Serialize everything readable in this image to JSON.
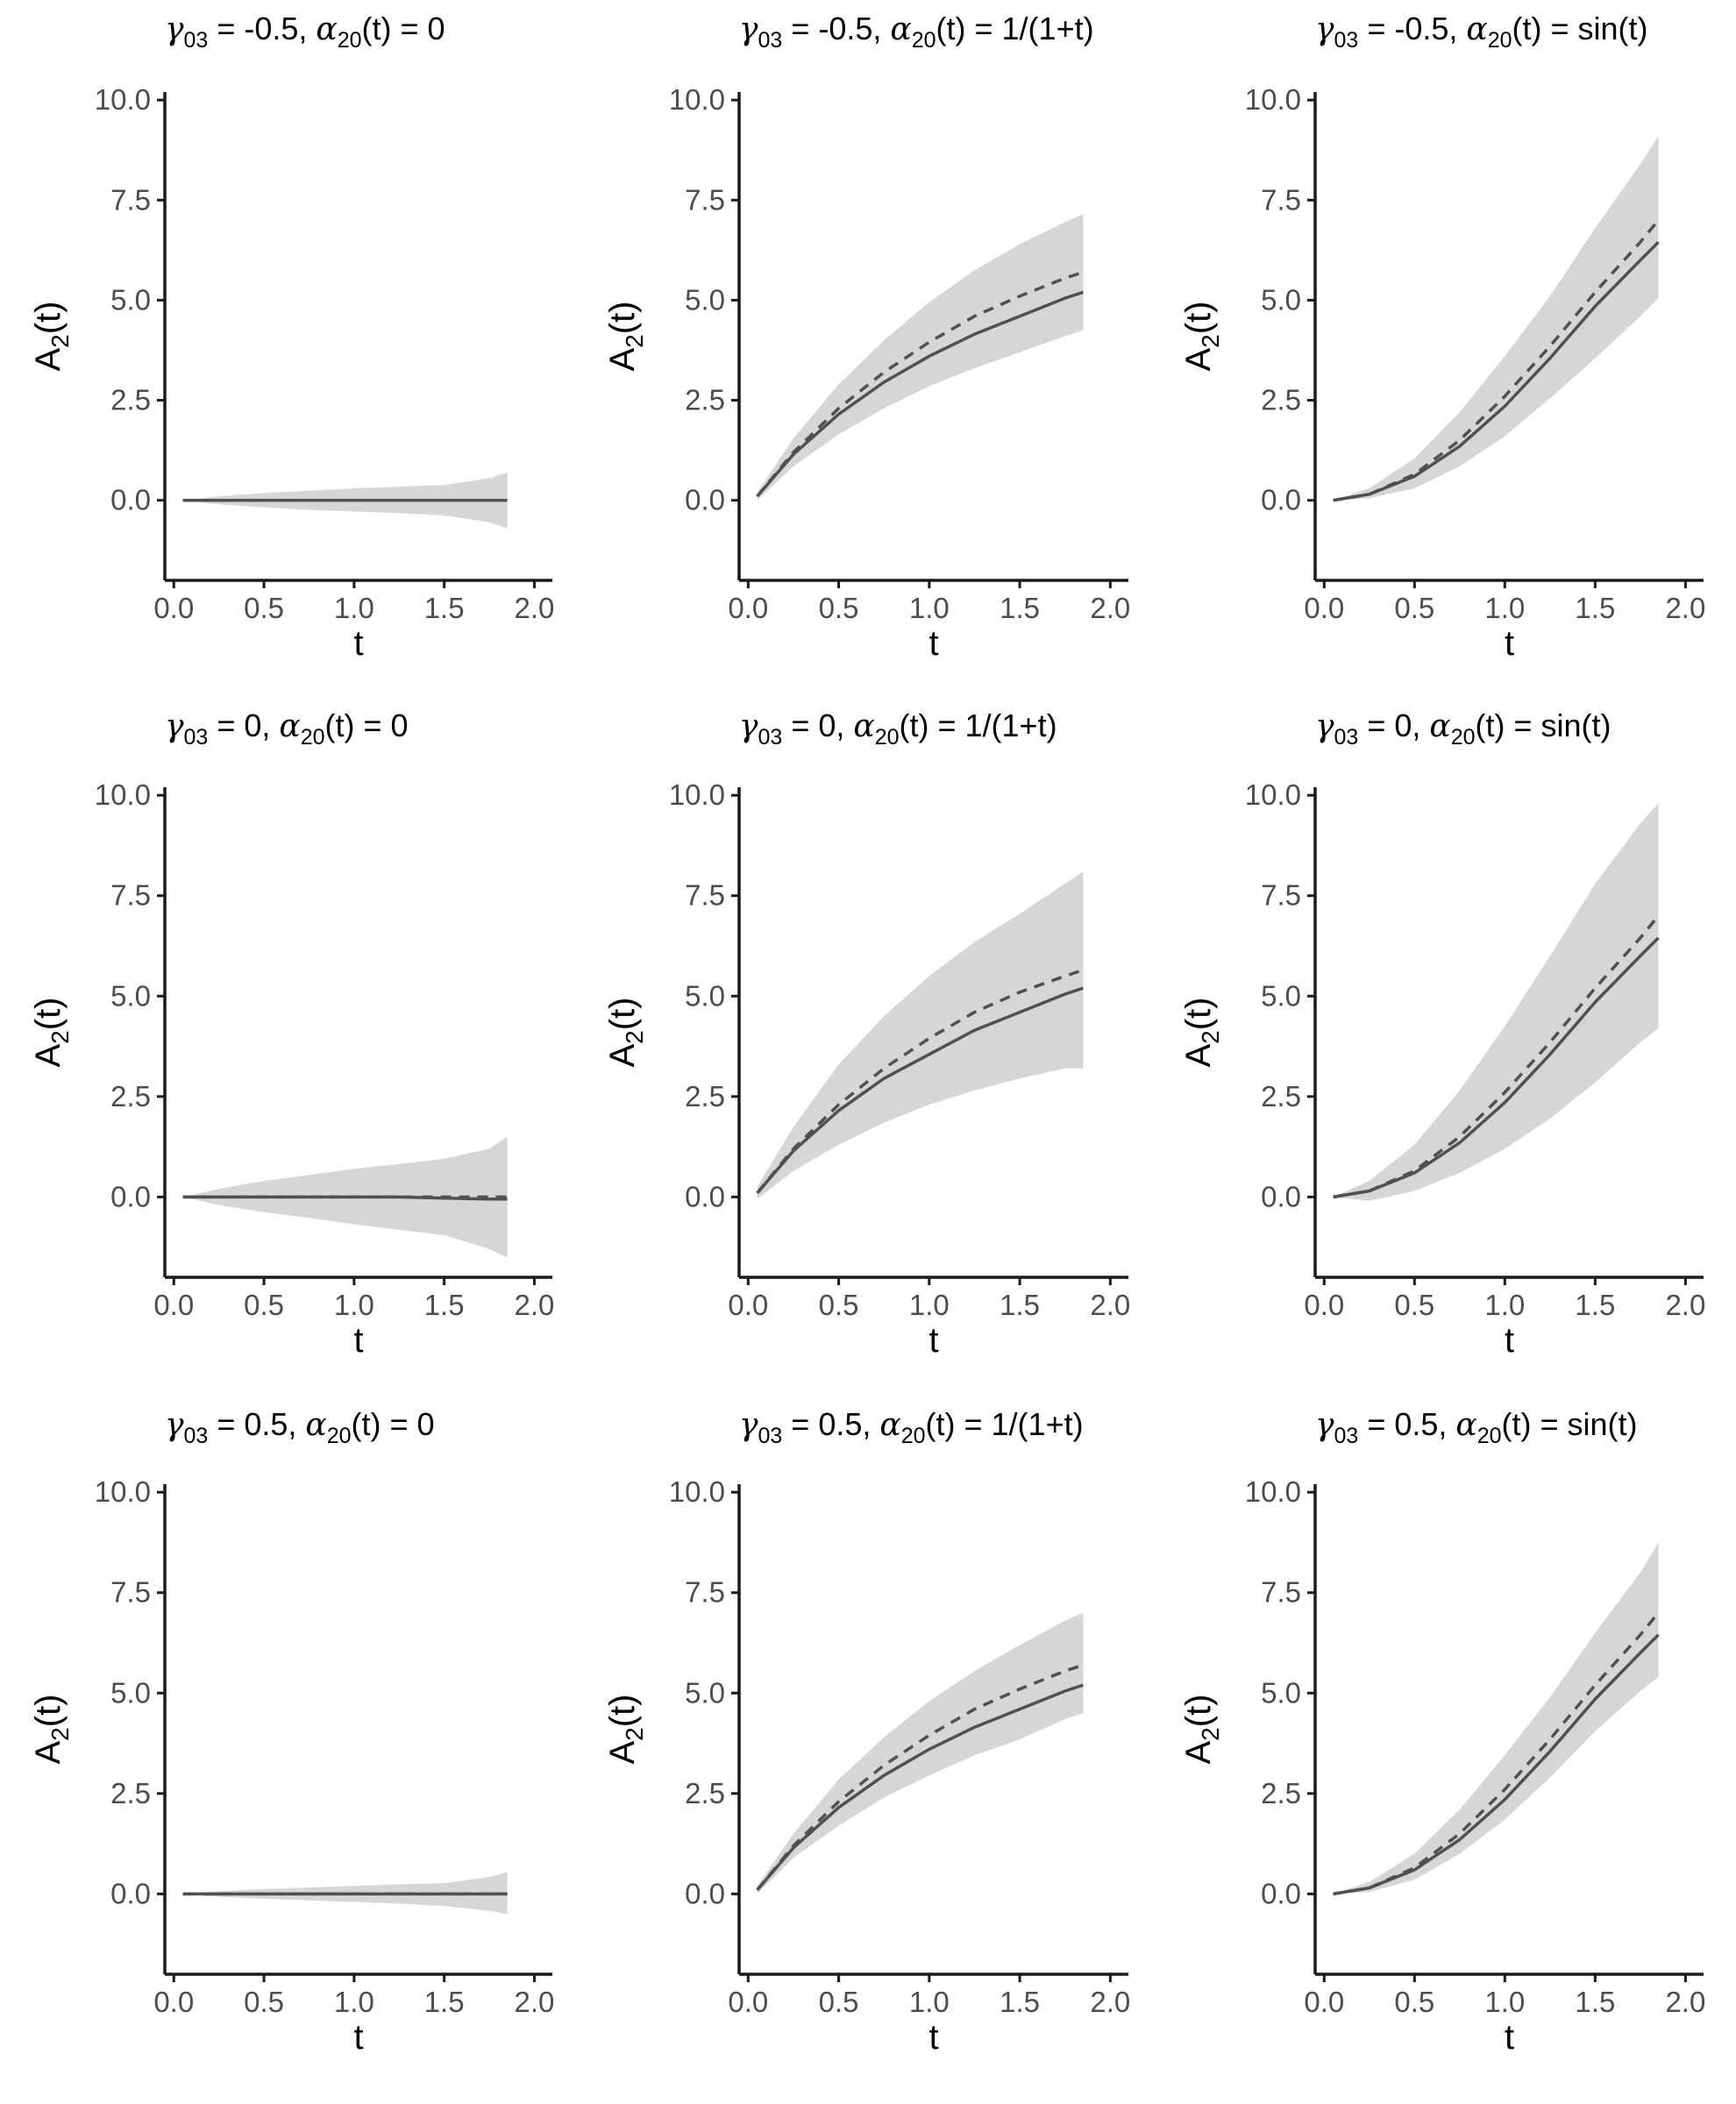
{
  "chart_data": [
    {
      "type": "area",
      "title": {
        "gamma": "-0.5",
        "alpha": "0"
      },
      "xlabel": "t",
      "ylabel": "A2(t)",
      "xlim": [
        -0.05,
        2.1
      ],
      "ylim": [
        -2.0,
        10.2
      ],
      "xticks": [
        "0.0",
        "0.5",
        "1.0",
        "1.5",
        "2.0"
      ],
      "yticks": [
        "0.0",
        "2.5",
        "5.0",
        "7.5",
        "10.0"
      ],
      "grid": false,
      "x": [
        0.05,
        0.25,
        0.5,
        0.75,
        1.0,
        1.25,
        1.5,
        1.75,
        1.85
      ],
      "series": [
        {
          "role": "truth",
          "values": [
            0,
            0,
            0,
            0,
            0,
            0,
            0,
            0,
            0
          ]
        },
        {
          "role": "estimate",
          "values": [
            0,
            0,
            0,
            0,
            0,
            0,
            0,
            0,
            0
          ]
        },
        {
          "role": "upper",
          "values": [
            0,
            0.1,
            0.18,
            0.24,
            0.3,
            0.34,
            0.38,
            0.55,
            0.7
          ]
        },
        {
          "role": "lower",
          "values": [
            0,
            -0.1,
            -0.18,
            -0.24,
            -0.28,
            -0.32,
            -0.38,
            -0.55,
            -0.7
          ]
        }
      ]
    },
    {
      "type": "area",
      "title": {
        "gamma": "-0.5",
        "alpha": "1/(1+t)"
      },
      "xlabel": "t",
      "ylabel": "A2(t)",
      "xlim": [
        -0.05,
        2.1
      ],
      "ylim": [
        -2.0,
        10.2
      ],
      "xticks": [
        "0.0",
        "0.5",
        "1.0",
        "1.5",
        "2.0"
      ],
      "yticks": [
        "0.0",
        "2.5",
        "5.0",
        "7.5",
        "10.0"
      ],
      "grid": false,
      "x": [
        0.05,
        0.25,
        0.5,
        0.75,
        1.0,
        1.25,
        1.5,
        1.75,
        1.85
      ],
      "series": [
        {
          "role": "truth",
          "values": [
            0.1,
            1.2,
            2.3,
            3.2,
            3.95,
            4.6,
            5.1,
            5.55,
            5.7
          ]
        },
        {
          "role": "estimate",
          "values": [
            0.1,
            1.15,
            2.15,
            2.95,
            3.6,
            4.15,
            4.6,
            5.05,
            5.2
          ]
        },
        {
          "role": "upper",
          "values": [
            0.2,
            1.55,
            2.9,
            4.0,
            4.95,
            5.75,
            6.4,
            6.95,
            7.15
          ]
        },
        {
          "role": "lower",
          "values": [
            0.0,
            0.85,
            1.65,
            2.3,
            2.85,
            3.3,
            3.7,
            4.1,
            4.25
          ]
        }
      ]
    },
    {
      "type": "area",
      "title": {
        "gamma": "-0.5",
        "alpha": "sin(t)"
      },
      "xlabel": "t",
      "ylabel": "A2(t)",
      "xlim": [
        -0.05,
        2.1
      ],
      "ylim": [
        -2.0,
        10.2
      ],
      "xticks": [
        "0.0",
        "0.5",
        "1.0",
        "1.5",
        "2.0"
      ],
      "yticks": [
        "0.0",
        "2.5",
        "5.0",
        "7.5",
        "10.0"
      ],
      "grid": false,
      "x": [
        0.05,
        0.25,
        0.5,
        0.75,
        1.0,
        1.25,
        1.5,
        1.75,
        1.85
      ],
      "series": [
        {
          "role": "truth",
          "values": [
            0.0,
            0.15,
            0.65,
            1.5,
            2.6,
            3.85,
            5.2,
            6.45,
            7.0
          ]
        },
        {
          "role": "estimate",
          "values": [
            0.0,
            0.15,
            0.6,
            1.35,
            2.35,
            3.55,
            4.85,
            6.0,
            6.45
          ]
        },
        {
          "role": "upper",
          "values": [
            0.0,
            0.3,
            1.05,
            2.2,
            3.6,
            5.1,
            6.8,
            8.4,
            9.1
          ]
        },
        {
          "role": "lower",
          "values": [
            0.0,
            0.05,
            0.3,
            0.85,
            1.6,
            2.55,
            3.55,
            4.6,
            5.05
          ]
        }
      ]
    },
    {
      "type": "area",
      "title": {
        "gamma": "0",
        "alpha": "0"
      },
      "xlabel": "t",
      "ylabel": "A2(t)",
      "xlim": [
        -0.05,
        2.1
      ],
      "ylim": [
        -2.0,
        10.2
      ],
      "xticks": [
        "0.0",
        "0.5",
        "1.0",
        "1.5",
        "2.0"
      ],
      "yticks": [
        "0.0",
        "2.5",
        "5.0",
        "7.5",
        "10.0"
      ],
      "grid": false,
      "x": [
        0.05,
        0.25,
        0.5,
        0.75,
        1.0,
        1.25,
        1.5,
        1.75,
        1.85
      ],
      "series": [
        {
          "role": "truth",
          "values": [
            0,
            0,
            0,
            0,
            0,
            0,
            0,
            0,
            0
          ]
        },
        {
          "role": "estimate",
          "values": [
            0,
            0,
            0,
            0,
            0,
            0,
            -0.03,
            -0.05,
            -0.05
          ]
        },
        {
          "role": "upper",
          "values": [
            0,
            0.2,
            0.4,
            0.55,
            0.7,
            0.82,
            0.95,
            1.2,
            1.5
          ]
        },
        {
          "role": "lower",
          "values": [
            0,
            -0.2,
            -0.38,
            -0.52,
            -0.68,
            -0.82,
            -0.95,
            -1.3,
            -1.5
          ]
        }
      ]
    },
    {
      "type": "area",
      "title": {
        "gamma": "0",
        "alpha": "1/(1+t)"
      },
      "xlabel": "t",
      "ylabel": "A2(t)",
      "xlim": [
        -0.05,
        2.1
      ],
      "ylim": [
        -2.0,
        10.2
      ],
      "xticks": [
        "0.0",
        "0.5",
        "1.0",
        "1.5",
        "2.0"
      ],
      "yticks": [
        "0.0",
        "2.5",
        "5.0",
        "7.5",
        "10.0"
      ],
      "grid": false,
      "x": [
        0.05,
        0.25,
        0.5,
        0.75,
        1.0,
        1.25,
        1.5,
        1.75,
        1.85
      ],
      "series": [
        {
          "role": "truth",
          "values": [
            0.1,
            1.2,
            2.3,
            3.2,
            3.95,
            4.6,
            5.1,
            5.5,
            5.65
          ]
        },
        {
          "role": "estimate",
          "values": [
            0.1,
            1.15,
            2.15,
            2.95,
            3.55,
            4.15,
            4.6,
            5.05,
            5.2
          ]
        },
        {
          "role": "upper",
          "values": [
            0.25,
            1.75,
            3.3,
            4.5,
            5.5,
            6.35,
            7.05,
            7.8,
            8.1
          ]
        },
        {
          "role": "lower",
          "values": [
            -0.05,
            0.65,
            1.3,
            1.85,
            2.3,
            2.65,
            2.95,
            3.2,
            3.2
          ]
        }
      ]
    },
    {
      "type": "area",
      "title": {
        "gamma": "0",
        "alpha": "sin(t)"
      },
      "xlabel": "t",
      "ylabel": "A2(t)",
      "xlim": [
        -0.05,
        2.1
      ],
      "ylim": [
        -2.0,
        10.2
      ],
      "xticks": [
        "0.0",
        "0.5",
        "1.0",
        "1.5",
        "2.0"
      ],
      "yticks": [
        "0.0",
        "2.5",
        "5.0",
        "7.5",
        "10.0"
      ],
      "grid": false,
      "x": [
        0.05,
        0.25,
        0.5,
        0.75,
        1.0,
        1.25,
        1.5,
        1.75,
        1.85
      ],
      "series": [
        {
          "role": "truth",
          "values": [
            0.0,
            0.15,
            0.65,
            1.5,
            2.6,
            3.85,
            5.2,
            6.45,
            7.0
          ]
        },
        {
          "role": "estimate",
          "values": [
            0.0,
            0.15,
            0.6,
            1.35,
            2.35,
            3.55,
            4.85,
            6.0,
            6.45
          ]
        },
        {
          "role": "upper",
          "values": [
            0.0,
            0.4,
            1.3,
            2.65,
            4.25,
            6.0,
            7.8,
            9.3,
            9.8
          ]
        },
        {
          "role": "lower",
          "values": [
            0.0,
            -0.1,
            0.15,
            0.6,
            1.2,
            1.95,
            2.85,
            3.85,
            4.2
          ]
        }
      ]
    },
    {
      "type": "area",
      "title": {
        "gamma": "0.5",
        "alpha": "0"
      },
      "xlabel": "t",
      "ylabel": "A2(t)",
      "xlim": [
        -0.05,
        2.1
      ],
      "ylim": [
        -2.0,
        10.2
      ],
      "xticks": [
        "0.0",
        "0.5",
        "1.0",
        "1.5",
        "2.0"
      ],
      "yticks": [
        "0.0",
        "2.5",
        "5.0",
        "7.5",
        "10.0"
      ],
      "grid": false,
      "x": [
        0.05,
        0.25,
        0.5,
        0.75,
        1.0,
        1.25,
        1.5,
        1.75,
        1.85
      ],
      "series": [
        {
          "role": "truth",
          "values": [
            0,
            0,
            0,
            0,
            0,
            0,
            0,
            0,
            0
          ]
        },
        {
          "role": "estimate",
          "values": [
            0,
            0,
            0,
            0,
            0,
            0,
            0,
            0,
            0
          ]
        },
        {
          "role": "upper",
          "values": [
            0,
            0.07,
            0.12,
            0.16,
            0.2,
            0.24,
            0.27,
            0.42,
            0.55
          ]
        },
        {
          "role": "lower",
          "values": [
            0,
            -0.07,
            -0.12,
            -0.16,
            -0.2,
            -0.24,
            -0.3,
            -0.42,
            -0.5
          ]
        }
      ]
    },
    {
      "type": "area",
      "title": {
        "gamma": "0.5",
        "alpha": "1/(1+t)"
      },
      "xlabel": "t",
      "ylabel": "A2(t)",
      "xlim": [
        -0.05,
        2.1
      ],
      "ylim": [
        -2.0,
        10.2
      ],
      "xticks": [
        "0.0",
        "0.5",
        "1.0",
        "1.5",
        "2.0"
      ],
      "yticks": [
        "0.0",
        "2.5",
        "5.0",
        "7.5",
        "10.0"
      ],
      "grid": false,
      "x": [
        0.05,
        0.25,
        0.5,
        0.75,
        1.0,
        1.25,
        1.5,
        1.75,
        1.85
      ],
      "series": [
        {
          "role": "truth",
          "values": [
            0.1,
            1.2,
            2.3,
            3.2,
            3.95,
            4.6,
            5.1,
            5.55,
            5.7
          ]
        },
        {
          "role": "estimate",
          "values": [
            0.1,
            1.15,
            2.15,
            2.95,
            3.6,
            4.15,
            4.6,
            5.05,
            5.2
          ]
        },
        {
          "role": "upper",
          "values": [
            0.2,
            1.5,
            2.85,
            3.9,
            4.8,
            5.55,
            6.2,
            6.8,
            7.0
          ]
        },
        {
          "role": "lower",
          "values": [
            0.0,
            0.9,
            1.7,
            2.4,
            2.95,
            3.45,
            3.85,
            4.35,
            4.5
          ]
        }
      ]
    },
    {
      "type": "area",
      "title": {
        "gamma": "0.5",
        "alpha": "sin(t)"
      },
      "xlabel": "t",
      "ylabel": "A2(t)",
      "xlim": [
        -0.05,
        2.1
      ],
      "ylim": [
        -2.0,
        10.2
      ],
      "xticks": [
        "0.0",
        "0.5",
        "1.0",
        "1.5",
        "2.0"
      ],
      "yticks": [
        "0.0",
        "2.5",
        "5.0",
        "7.5",
        "10.0"
      ],
      "grid": false,
      "x": [
        0.05,
        0.25,
        0.5,
        0.75,
        1.0,
        1.25,
        1.5,
        1.75,
        1.85
      ],
      "series": [
        {
          "role": "truth",
          "values": [
            0.0,
            0.15,
            0.65,
            1.5,
            2.6,
            3.85,
            5.2,
            6.45,
            7.0
          ]
        },
        {
          "role": "estimate",
          "values": [
            0.0,
            0.15,
            0.6,
            1.35,
            2.35,
            3.55,
            4.85,
            6.0,
            6.45
          ]
        },
        {
          "role": "upper",
          "values": [
            0.0,
            0.3,
            1.0,
            2.1,
            3.45,
            4.9,
            6.5,
            8.0,
            8.75
          ]
        },
        {
          "role": "lower",
          "values": [
            0.0,
            0.05,
            0.35,
            1.0,
            1.85,
            2.9,
            4.05,
            5.05,
            5.4
          ]
        }
      ]
    }
  ]
}
